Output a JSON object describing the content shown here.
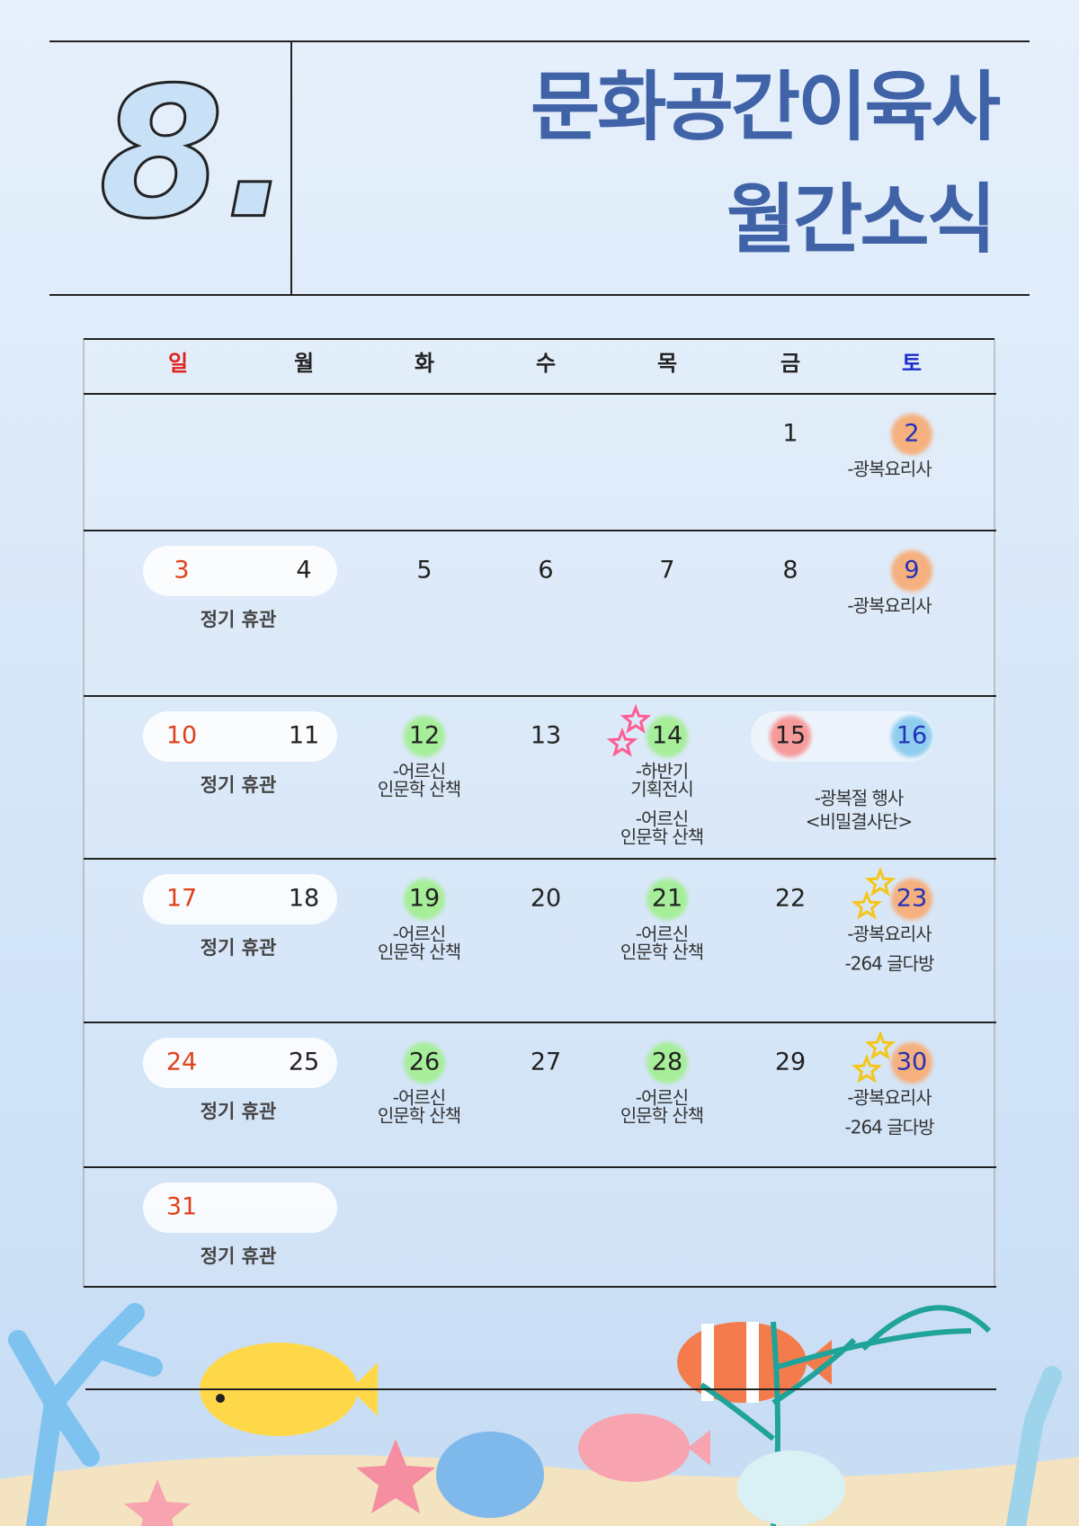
{
  "header": {
    "month": "8.",
    "title": [
      "문화공간이육사",
      "월간소식"
    ]
  },
  "calendar": {
    "weekdays": [
      "일",
      "월",
      "화",
      "수",
      "목",
      "금",
      "토"
    ],
    "weeks": [
      [
        null,
        null,
        null,
        null,
        null,
        {
          "day": 1
        },
        {
          "day": 2,
          "highlight": "#f6b07e",
          "events": [
            [
              "-광복요리사"
            ]
          ]
        }
      ],
      [
        {
          "day": 3,
          "note": "정기 휴관"
        },
        {
          "day": 4
        },
        {
          "day": 5
        },
        {
          "day": 6
        },
        {
          "day": 7
        },
        {
          "day": 8
        },
        {
          "day": 9,
          "highlight": "#f6b07e",
          "events": [
            [
              "-광복요리사"
            ]
          ]
        }
      ],
      [
        {
          "day": 10,
          "note": "정기 휴관"
        },
        {
          "day": 11
        },
        {
          "day": 12,
          "highlight": "#a6ee9a",
          "events": [
            [
              "-어르신",
              "인문학 산책"
            ]
          ]
        },
        {
          "day": 13
        },
        {
          "day": 14,
          "highlight": "#a6ee9a",
          "stars": "#ff5c93",
          "events": [
            [
              "-하반기",
              "기획전시"
            ],
            [
              "-어르신",
              "인문학 산책"
            ]
          ]
        },
        {
          "day": 15,
          "highlight": "#f79a9a",
          "shared_events": [
            "-광복절 행사",
            "<비밀결사단>"
          ]
        },
        {
          "day": 16,
          "highlight": "#8fcdf0"
        }
      ],
      [
        {
          "day": 17,
          "note": "정기 휴관"
        },
        {
          "day": 18
        },
        {
          "day": 19,
          "highlight": "#a6ee9a",
          "events": [
            [
              "-어르신",
              "인문학 산책"
            ]
          ]
        },
        {
          "day": 20
        },
        {
          "day": 21,
          "highlight": "#a6ee9a",
          "events": [
            [
              "-어르신",
              "인문학 산책"
            ]
          ]
        },
        {
          "day": 22
        },
        {
          "day": 23,
          "highlight": "#f6b07e",
          "stars": "#f5c518",
          "events": [
            [
              "-광복요리사"
            ],
            [
              "-264 글다방"
            ]
          ]
        }
      ],
      [
        {
          "day": 24,
          "note": "정기 휴관"
        },
        {
          "day": 25
        },
        {
          "day": 26,
          "highlight": "#a6ee9a",
          "events": [
            [
              "-어르신",
              "인문학 산책"
            ]
          ]
        },
        {
          "day": 27
        },
        {
          "day": 28,
          "highlight": "#a6ee9a",
          "events": [
            [
              "-어르신",
              "인문학 산책"
            ]
          ]
        },
        {
          "day": 29
        },
        {
          "day": 30,
          "highlight": "#f6b07e",
          "stars": "#f5c518",
          "events": [
            [
              "-광복요리사"
            ],
            [
              "-264 글다방"
            ]
          ]
        }
      ],
      [
        {
          "day": 31,
          "note": "정기 휴관"
        },
        null,
        null,
        null,
        null,
        null,
        null
      ]
    ]
  }
}
